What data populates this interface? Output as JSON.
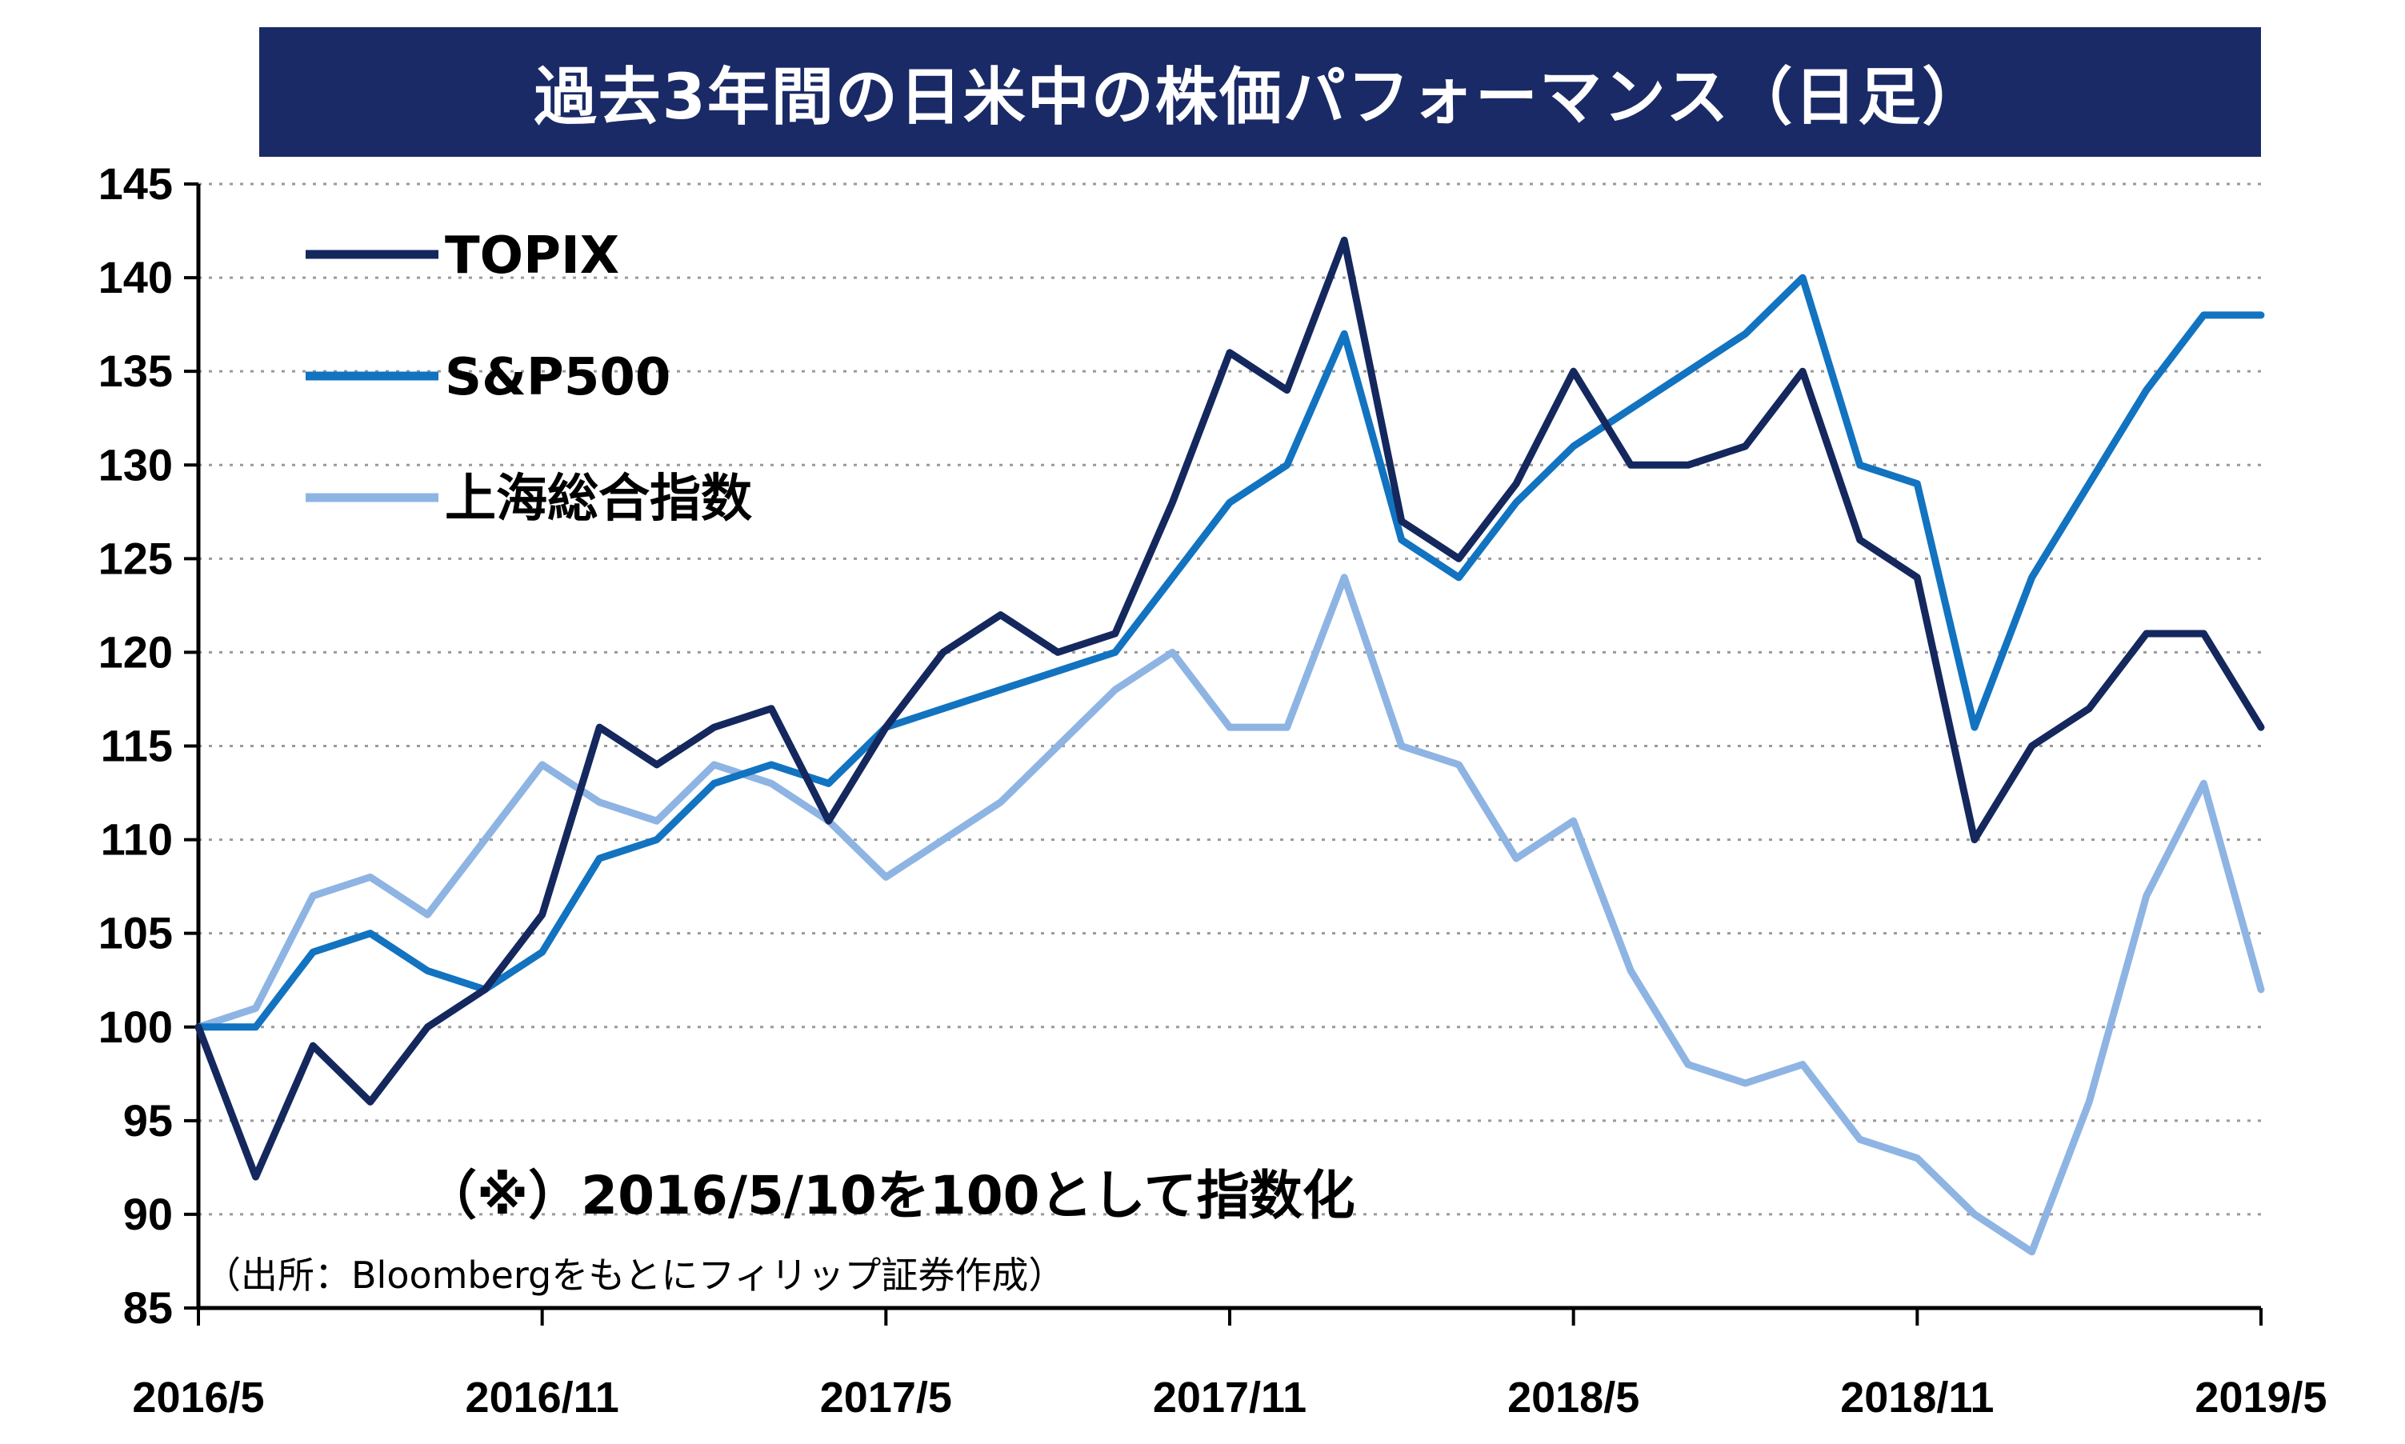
{
  "title": "過去3年間の日米中の株価パフォーマンス（日足）",
  "note": "（※）2016/5/10を100として指数化",
  "source": "（出所：Bloombergをもとにフィリップ証券作成）",
  "chart_data": {
    "type": "line",
    "title": "過去3年間の日米中の株価パフォーマンス（日足）",
    "xlabel": "",
    "ylabel": "",
    "ylim": [
      85,
      145
    ],
    "yticks": [
      85,
      90,
      95,
      100,
      105,
      110,
      115,
      120,
      125,
      130,
      135,
      140,
      145
    ],
    "xlim": [
      "2016/5",
      "2019/5"
    ],
    "xticks": [
      "2016/5",
      "2016/11",
      "2017/5",
      "2017/11",
      "2018/5",
      "2018/11",
      "2019/5"
    ],
    "grid": "horizontal dotted",
    "legend": "top-left",
    "x": [
      "2016/5",
      "2016/6",
      "2016/7",
      "2016/8",
      "2016/9",
      "2016/10",
      "2016/11",
      "2016/12",
      "2017/1",
      "2017/2",
      "2017/3",
      "2017/4",
      "2017/5",
      "2017/6",
      "2017/7",
      "2017/8",
      "2017/9",
      "2017/10",
      "2017/11",
      "2017/12",
      "2018/1",
      "2018/2",
      "2018/3",
      "2018/4",
      "2018/5",
      "2018/6",
      "2018/7",
      "2018/8",
      "2018/9",
      "2018/10",
      "2018/11",
      "2018/12",
      "2019/1",
      "2019/2",
      "2019/3",
      "2019/4",
      "2019/5"
    ],
    "series": [
      {
        "name": "TOPIX",
        "color": "#14285e",
        "values": [
          100,
          92,
          99,
          96,
          100,
          102,
          106,
          116,
          114,
          116,
          117,
          111,
          116,
          120,
          122,
          120,
          121,
          128,
          136,
          134,
          142,
          127,
          125,
          129,
          135,
          130,
          130,
          131,
          135,
          126,
          124,
          110,
          115,
          117,
          121,
          121,
          116
        ]
      },
      {
        "name": "S&P500",
        "color": "#1273c0",
        "values": [
          100,
          100,
          104,
          105,
          103,
          102,
          104,
          109,
          110,
          113,
          114,
          113,
          116,
          117,
          118,
          119,
          120,
          124,
          128,
          130,
          137,
          126,
          124,
          128,
          131,
          133,
          135,
          137,
          140,
          130,
          129,
          116,
          124,
          129,
          134,
          138,
          138
        ]
      },
      {
        "name": "上海総合指数",
        "color": "#8eb4e3",
        "values": [
          100,
          101,
          107,
          108,
          106,
          110,
          114,
          112,
          111,
          114,
          113,
          111,
          108,
          110,
          112,
          115,
          118,
          120,
          116,
          116,
          124,
          115,
          114,
          109,
          111,
          103,
          98,
          97,
          98,
          94,
          93,
          90,
          88,
          96,
          107,
          113,
          102
        ]
      }
    ]
  }
}
